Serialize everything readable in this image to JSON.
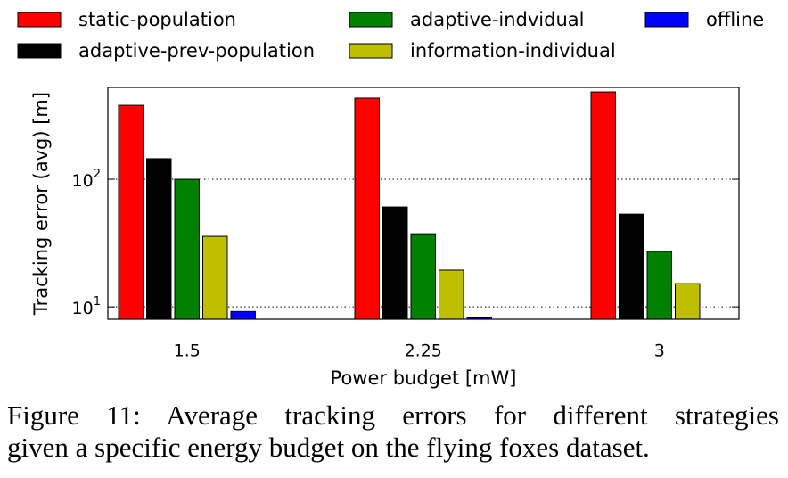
{
  "chart_data": {
    "type": "bar",
    "categories": [
      "1.5",
      "2.25",
      "3"
    ],
    "series": [
      {
        "name": "static-population",
        "color": "#ff0000",
        "values": [
          380,
          433,
          484
        ]
      },
      {
        "name": "adaptive-prev-population",
        "color": "#000000",
        "values": [
          145,
          60.7,
          53.3
        ]
      },
      {
        "name": "adaptive-indvidual",
        "color": "#008000",
        "values": [
          100,
          37.4,
          27.2
        ]
      },
      {
        "name": "information-individual",
        "color": "#bfbf00",
        "values": [
          35.7,
          19.4,
          15.2
        ]
      },
      {
        "name": "offline",
        "color": "#0000ff",
        "values": [
          9.2,
          8.2,
          8
        ]
      }
    ],
    "ylabel": "Tracking error (avg) [m]",
    "xlabel": "Power budget [mW]",
    "ylim": [
      8,
      525
    ],
    "yticks": [
      {
        "value": 10,
        "label": "10^1"
      },
      {
        "value": 100,
        "label": "10^2"
      }
    ],
    "log_scale": true,
    "grid": true,
    "legend_position": "top",
    "caption": [
      "Figure 11:  Average tracking errors for different strategies",
      "given a specific energy budget on the flying foxes dataset."
    ]
  }
}
